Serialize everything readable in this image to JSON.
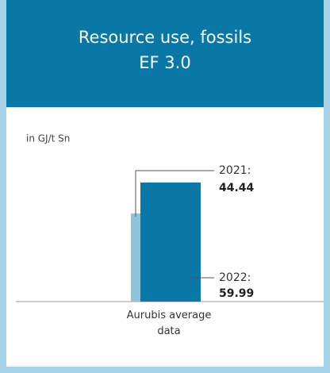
{
  "chart_data": {
    "type": "bar",
    "title": "Resource use, fossils",
    "subtitle": "EF 3.0",
    "unit_label": "in GJ/t Sn",
    "categories": [
      "Aurubis average data"
    ],
    "series": [
      {
        "name": "2021:",
        "color": "#8ec3de",
        "values": [
          44.44
        ]
      },
      {
        "name": "2022:",
        "color": "#0a78a6",
        "values": [
          59.99
        ]
      }
    ]
  }
}
